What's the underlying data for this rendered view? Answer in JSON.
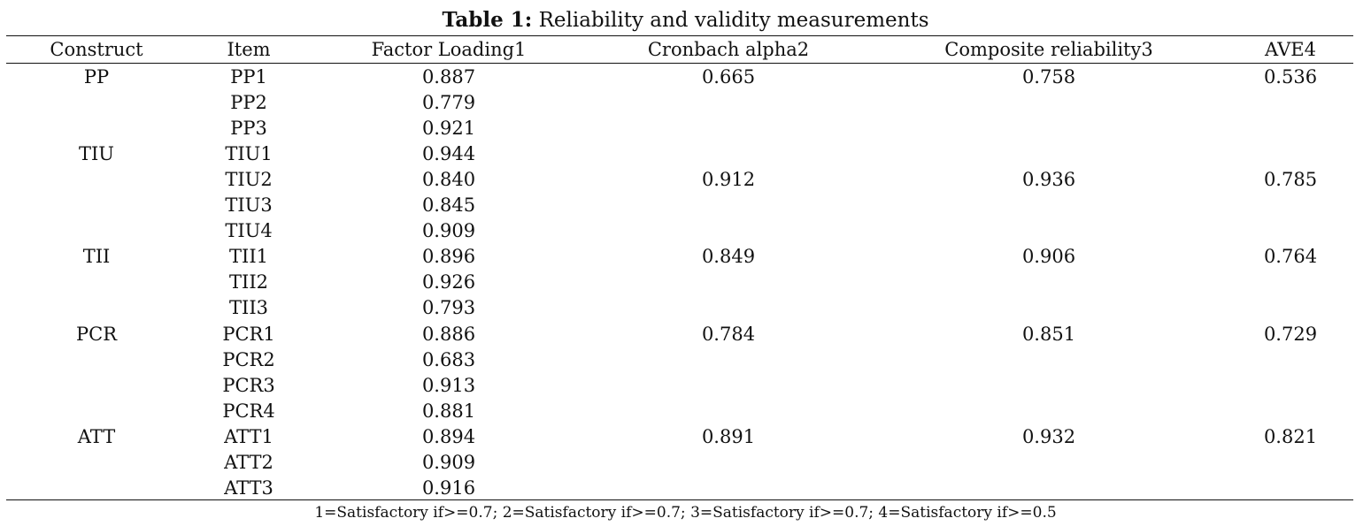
{
  "caption": {
    "label": "Table 1:",
    "title": "Reliability and validity measurements"
  },
  "headers": {
    "construct": "Construct",
    "item": "Item",
    "loading": "Factor Loading1",
    "alpha": "Cronbach alpha2",
    "cr": "Composite reliability3",
    "ave": "AVE4"
  },
  "rows": [
    {
      "construct": "PP",
      "item": "PP1",
      "loading": "0.887",
      "alpha": "0.665",
      "cr": "0.758",
      "ave": "0.536"
    },
    {
      "construct": "",
      "item": "PP2",
      "loading": "0.779",
      "alpha": "",
      "cr": "",
      "ave": ""
    },
    {
      "construct": "",
      "item": "PP3",
      "loading": "0.921",
      "alpha": "",
      "cr": "",
      "ave": ""
    },
    {
      "construct": "TIU",
      "item": "TIU1",
      "loading": "0.944",
      "alpha": "",
      "cr": "",
      "ave": ""
    },
    {
      "construct": "",
      "item": "TIU2",
      "loading": "0.840",
      "alpha": "0.912",
      "cr": "0.936",
      "ave": "0.785"
    },
    {
      "construct": "",
      "item": "TIU3",
      "loading": "0.845",
      "alpha": "",
      "cr": "",
      "ave": ""
    },
    {
      "construct": "",
      "item": "TIU4",
      "loading": "0.909",
      "alpha": "",
      "cr": "",
      "ave": ""
    },
    {
      "construct": "TII",
      "item": "TII1",
      "loading": "0.896",
      "alpha": "0.849",
      "cr": "0.906",
      "ave": "0.764"
    },
    {
      "construct": "",
      "item": "TII2",
      "loading": "0.926",
      "alpha": "",
      "cr": "",
      "ave": ""
    },
    {
      "construct": "",
      "item": "TII3",
      "loading": "0.793",
      "alpha": "",
      "cr": "",
      "ave": ""
    },
    {
      "construct": "PCR",
      "item": "PCR1",
      "loading": "0.886",
      "alpha": "0.784",
      "cr": "0.851",
      "ave": "0.729"
    },
    {
      "construct": "",
      "item": "PCR2",
      "loading": "0.683",
      "alpha": "",
      "cr": "",
      "ave": ""
    },
    {
      "construct": "",
      "item": "PCR3",
      "loading": "0.913",
      "alpha": "",
      "cr": "",
      "ave": ""
    },
    {
      "construct": "",
      "item": "PCR4",
      "loading": "0.881",
      "alpha": "",
      "cr": "",
      "ave": ""
    },
    {
      "construct": "ATT",
      "item": "ATT1",
      "loading": "0.894",
      "alpha": "0.891",
      "cr": "0.932",
      "ave": "0.821"
    },
    {
      "construct": "",
      "item": "ATT2",
      "loading": "0.909",
      "alpha": "",
      "cr": "",
      "ave": ""
    },
    {
      "construct": "",
      "item": "ATT3",
      "loading": "0.916",
      "alpha": "",
      "cr": "",
      "ave": ""
    }
  ],
  "footnote": "1=Satisfactory if>=0.7; 2=Satisfactory if>=0.7; 3=Satisfactory if>=0.7; 4=Satisfactory if>=0.5"
}
